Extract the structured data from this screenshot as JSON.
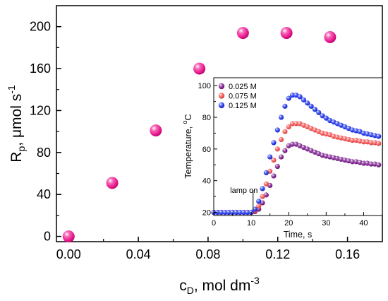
{
  "chart_data": [
    {
      "type": "scatter",
      "xlabel": {
        "main": "c",
        "sub": "D",
        "rest": ", mol dm",
        "sup": "-3"
      },
      "ylabel": {
        "main": "R",
        "sub": "p",
        "rest": ", μmol s",
        "sup": "-1"
      },
      "xlim": [
        -0.007,
        0.18
      ],
      "ylim": [
        -5,
        220
      ],
      "x_ticks": [
        0.0,
        0.04,
        0.08,
        0.12,
        0.16
      ],
      "x_tick_labels": [
        "0.00",
        "0.04",
        "0.08",
        "0.12",
        "0.16"
      ],
      "y_ticks": [
        0,
        40,
        80,
        120,
        160,
        200
      ],
      "y_tick_labels": [
        "0",
        "40",
        "80",
        "120",
        "160",
        "200"
      ],
      "marker_color": "#e6128a",
      "points": [
        {
          "x": 0.0,
          "y": 0
        },
        {
          "x": 0.025,
          "y": 51
        },
        {
          "x": 0.05,
          "y": 101
        },
        {
          "x": 0.075,
          "y": 160
        },
        {
          "x": 0.1,
          "y": 194
        },
        {
          "x": 0.125,
          "y": 194
        },
        {
          "x": 0.15,
          "y": 190
        }
      ]
    },
    {
      "type": "scatter",
      "inset": true,
      "xlabel": "Time, s",
      "ylabel": {
        "main": "Temperature, ",
        "sup": "o",
        "rest": "C"
      },
      "xlim": [
        0,
        45
      ],
      "ylim": [
        18,
        105
      ],
      "x_ticks": [
        0,
        10,
        20,
        30,
        40
      ],
      "x_tick_labels": [
        "0",
        "10",
        "20",
        "30",
        "40"
      ],
      "y_ticks": [
        20,
        40,
        60,
        80,
        100
      ],
      "y_tick_labels": [
        "20",
        "40",
        "60",
        "80",
        "100"
      ],
      "annotation": {
        "text": "lamp on",
        "x": 10.5
      },
      "legend_position": "top-left",
      "series": [
        {
          "name": "0.025 M",
          "color": "#7a1a8c",
          "points": [
            [
              0,
              20
            ],
            [
              1,
              20
            ],
            [
              2,
              20
            ],
            [
              3,
              20
            ],
            [
              4,
              20
            ],
            [
              5,
              20
            ],
            [
              6,
              20
            ],
            [
              7,
              20
            ],
            [
              8,
              20
            ],
            [
              9,
              20
            ],
            [
              10,
              20
            ],
            [
              11,
              20.5
            ],
            [
              12,
              22
            ],
            [
              13,
              26
            ],
            [
              14,
              31
            ],
            [
              15,
              37
            ],
            [
              16,
              43
            ],
            [
              17,
              49
            ],
            [
              18,
              55
            ],
            [
              19,
              59
            ],
            [
              20,
              62
            ],
            [
              21,
              63
            ],
            [
              22,
              63
            ],
            [
              23,
              62
            ],
            [
              24,
              61
            ],
            [
              25,
              60
            ],
            [
              26,
              59
            ],
            [
              27,
              58
            ],
            [
              28,
              57
            ],
            [
              29,
              56
            ],
            [
              30,
              55.5
            ],
            [
              31,
              55
            ],
            [
              32,
              54.5
            ],
            [
              33,
              54
            ],
            [
              34,
              53.5
            ],
            [
              35,
              53
            ],
            [
              36,
              52.5
            ],
            [
              37,
              52
            ],
            [
              38,
              52
            ],
            [
              39,
              51.5
            ],
            [
              40,
              51
            ],
            [
              41,
              51
            ],
            [
              42,
              50.5
            ],
            [
              43,
              50.5
            ],
            [
              44,
              50
            ]
          ]
        },
        {
          "name": "0.075 M",
          "color": "#f24b4b",
          "points": [
            [
              0,
              20
            ],
            [
              1,
              20
            ],
            [
              2,
              20
            ],
            [
              3,
              20
            ],
            [
              4,
              20
            ],
            [
              5,
              20
            ],
            [
              6,
              20
            ],
            [
              7,
              20
            ],
            [
              8,
              20
            ],
            [
              9,
              20
            ],
            [
              10,
              20
            ],
            [
              11,
              21
            ],
            [
              12,
              24
            ],
            [
              13,
              30
            ],
            [
              14,
              38
            ],
            [
              15,
              46
            ],
            [
              16,
              53
            ],
            [
              17,
              60
            ],
            [
              18,
              66
            ],
            [
              19,
              71
            ],
            [
              20,
              74
            ],
            [
              21,
              76
            ],
            [
              22,
              76
            ],
            [
              23,
              76
            ],
            [
              24,
              75
            ],
            [
              25,
              74
            ],
            [
              26,
              73
            ],
            [
              27,
              72
            ],
            [
              28,
              71
            ],
            [
              29,
              70
            ],
            [
              30,
              69.5
            ],
            [
              31,
              69
            ],
            [
              32,
              68
            ],
            [
              33,
              67.5
            ],
            [
              34,
              67
            ],
            [
              35,
              66.5
            ],
            [
              36,
              66
            ],
            [
              37,
              65.5
            ],
            [
              38,
              65.5
            ],
            [
              39,
              65
            ],
            [
              40,
              64.5
            ],
            [
              41,
              64.5
            ],
            [
              42,
              64
            ],
            [
              43,
              64
            ],
            [
              44,
              63.5
            ]
          ]
        },
        {
          "name": "0.125 M",
          "color": "#1a2fe8",
          "points": [
            [
              0,
              20
            ],
            [
              1,
              20
            ],
            [
              2,
              20
            ],
            [
              3,
              20
            ],
            [
              4,
              20
            ],
            [
              5,
              20
            ],
            [
              6,
              20
            ],
            [
              7,
              20
            ],
            [
              8,
              20
            ],
            [
              9,
              20
            ],
            [
              10,
              20
            ],
            [
              11,
              22
            ],
            [
              12,
              27
            ],
            [
              13,
              35
            ],
            [
              14,
              45
            ],
            [
              15,
              55
            ],
            [
              16,
              64
            ],
            [
              17,
              72
            ],
            [
              18,
              80
            ],
            [
              19,
              87
            ],
            [
              20,
              92
            ],
            [
              21,
              94
            ],
            [
              22,
              94
            ],
            [
              23,
              93
            ],
            [
              24,
              91
            ],
            [
              25,
              89
            ],
            [
              26,
              87
            ],
            [
              27,
              85
            ],
            [
              28,
              83
            ],
            [
              29,
              81
            ],
            [
              30,
              79.5
            ],
            [
              31,
              78
            ],
            [
              32,
              77
            ],
            [
              33,
              76
            ],
            [
              34,
              75
            ],
            [
              35,
              74
            ],
            [
              36,
              73
            ],
            [
              37,
              72
            ],
            [
              38,
              71.5
            ],
            [
              39,
              71
            ],
            [
              40,
              70
            ],
            [
              41,
              69.5
            ],
            [
              42,
              69
            ],
            [
              43,
              68.5
            ],
            [
              44,
              68
            ]
          ]
        }
      ]
    }
  ]
}
